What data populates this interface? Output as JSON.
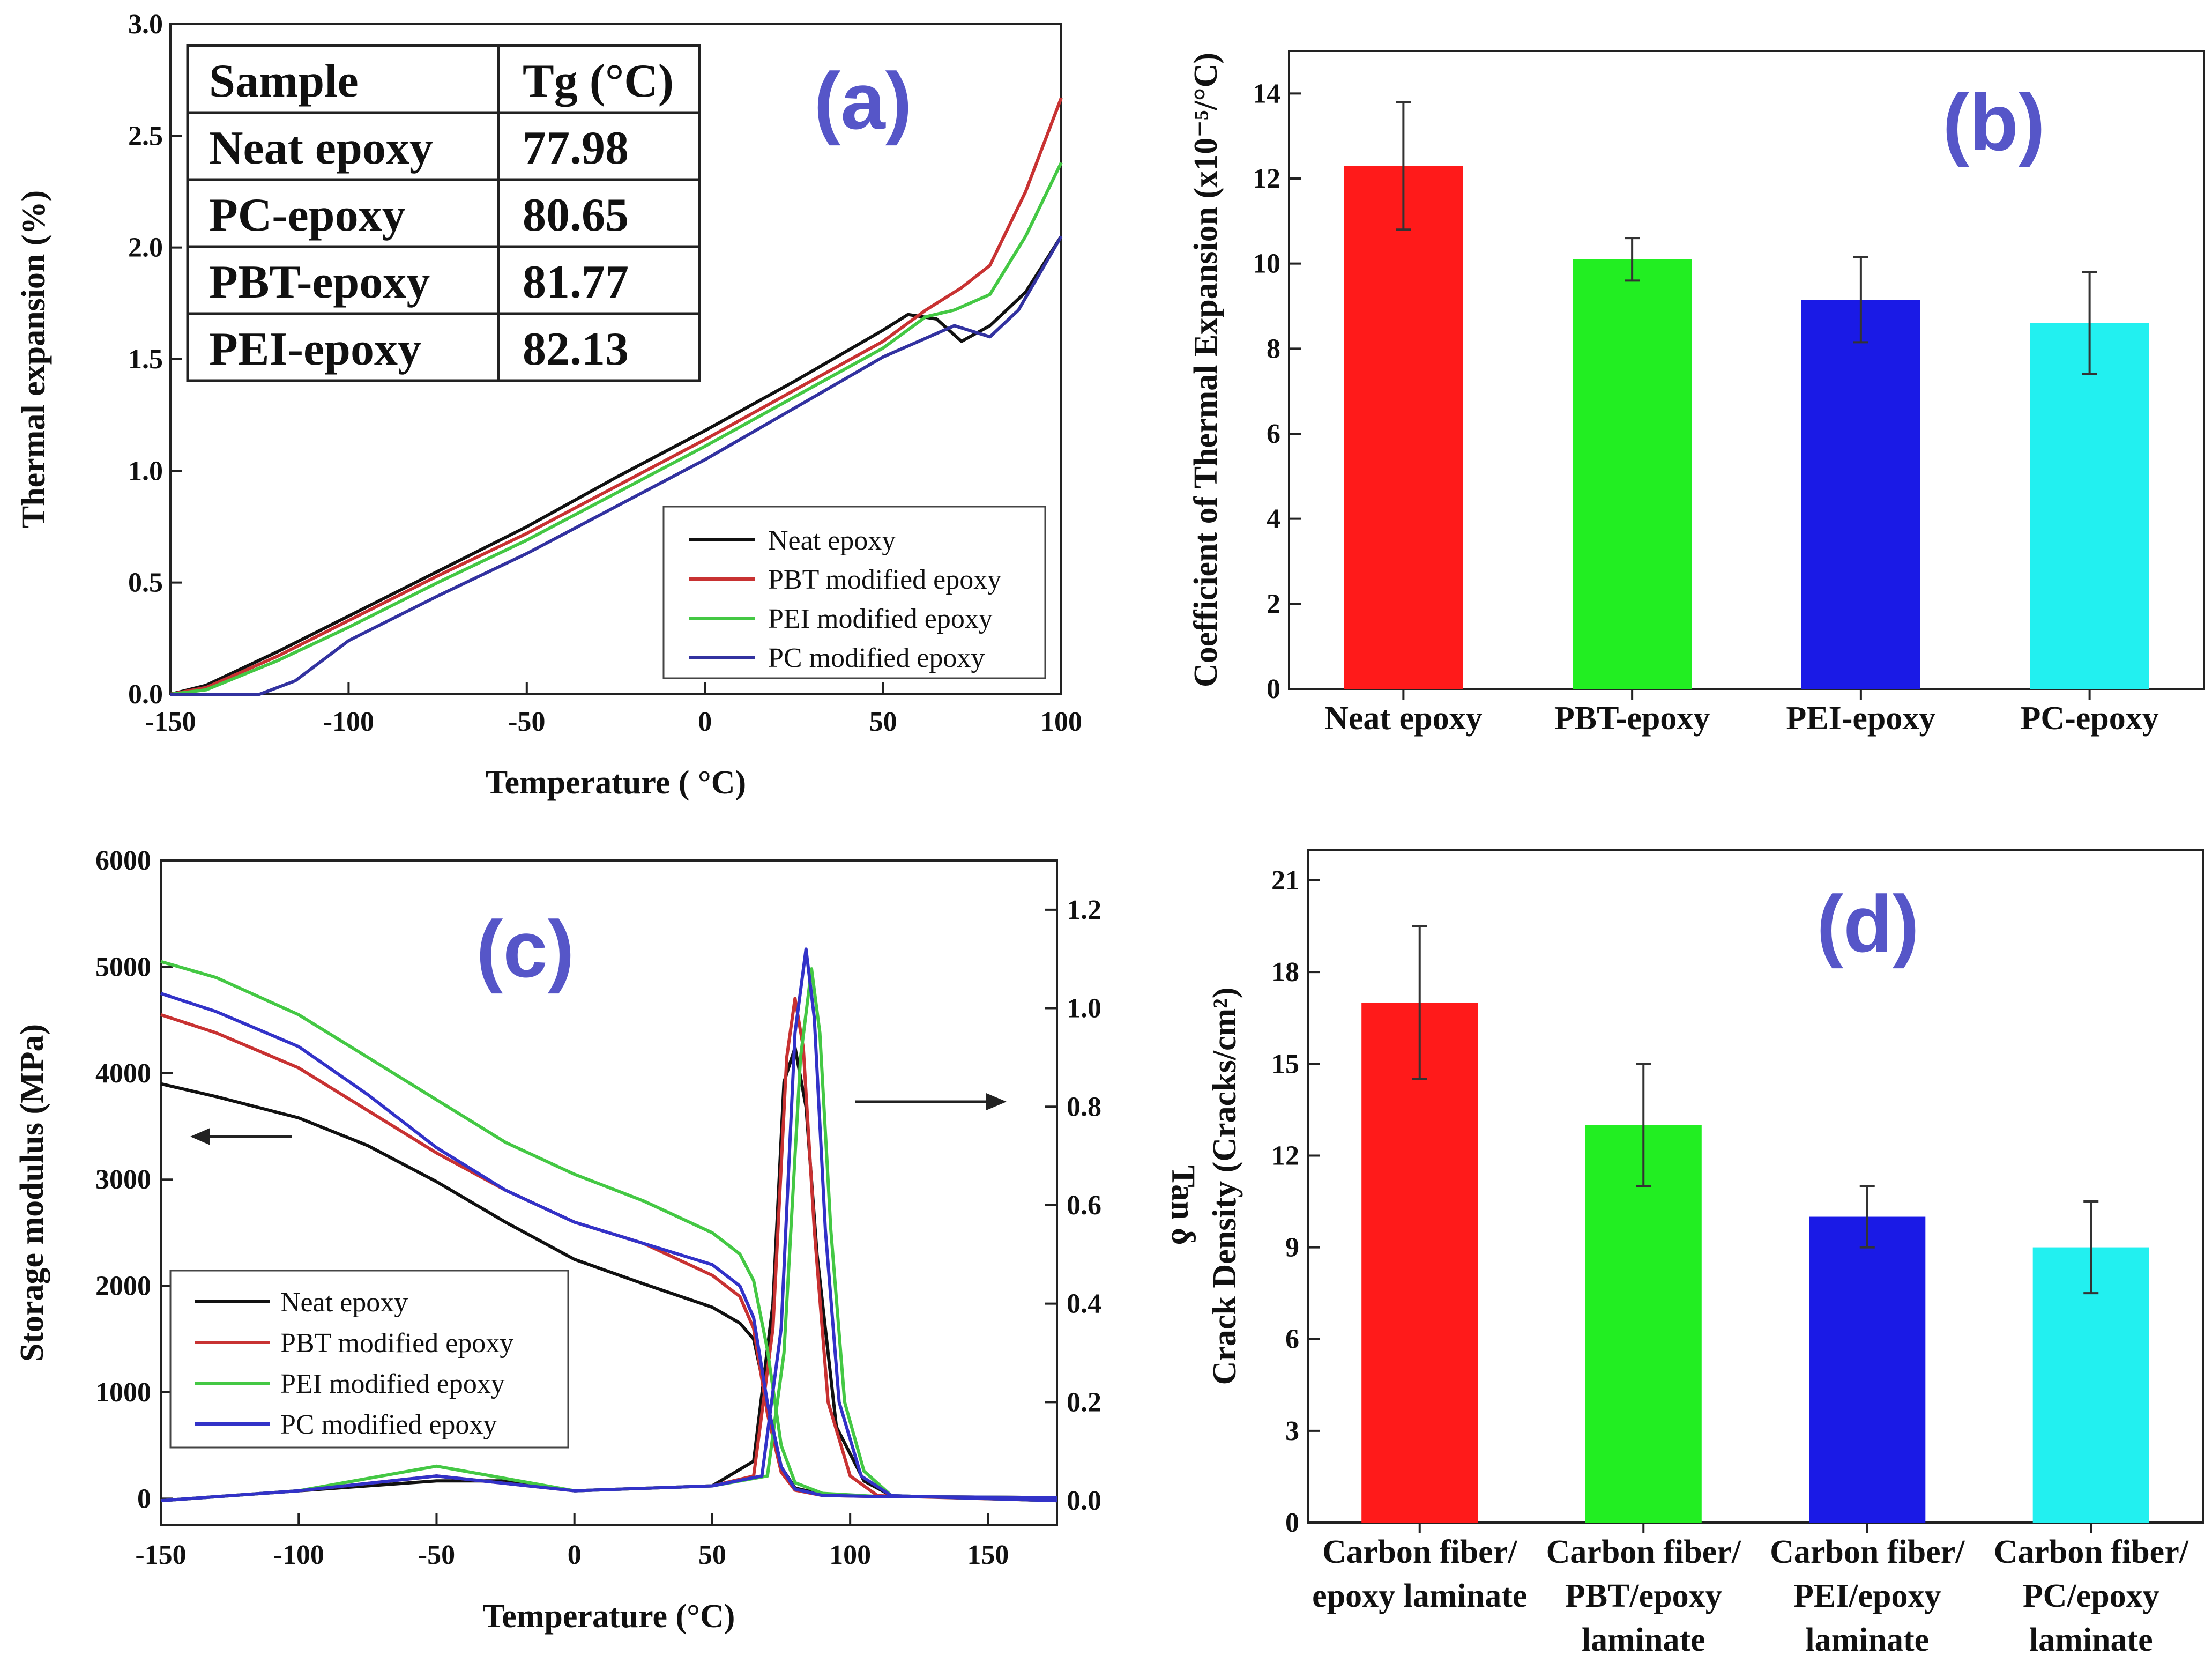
{
  "chart_data": [
    {
      "id": "a",
      "type": "line",
      "panel_label": "(a)",
      "xlabel": "Temperature ( °C)",
      "ylabel": "Thermal expansion (%)",
      "xlim": [
        -150,
        100
      ],
      "ylim": [
        0,
        3.0
      ],
      "xticks": [
        "-150",
        "-100",
        "-50",
        "0",
        "50",
        "100"
      ],
      "yticks": [
        "0.0",
        "0.5",
        "1.0",
        "1.5",
        "2.0",
        "2.5",
        "3.0"
      ],
      "legend": [
        "Neat epoxy",
        "PBT modified epoxy",
        "PEI modified epoxy",
        "PC modified epoxy"
      ],
      "table": {
        "header": [
          "Sample",
          "Tg (°C)"
        ],
        "rows": [
          [
            "Neat epoxy",
            "77.98"
          ],
          [
            "PC-epoxy",
            "80.65"
          ],
          [
            "PBT-epoxy",
            "81.77"
          ],
          [
            "PEI-epoxy",
            "82.13"
          ]
        ]
      },
      "series": [
        {
          "name": "Neat epoxy",
          "color": "#111111",
          "x": [
            -150,
            -140,
            -120,
            -100,
            -75,
            -50,
            -25,
            0,
            25,
            50,
            57,
            65,
            72,
            80,
            90,
            100
          ],
          "y": [
            0,
            0.04,
            0.19,
            0.35,
            0.55,
            0.75,
            0.97,
            1.18,
            1.4,
            1.63,
            1.7,
            1.68,
            1.58,
            1.65,
            1.8,
            2.05
          ]
        },
        {
          "name": "PBT modified epoxy",
          "color": "#c83232",
          "x": [
            -150,
            -140,
            -120,
            -100,
            -75,
            -50,
            -25,
            0,
            25,
            50,
            62,
            72,
            80,
            90,
            100
          ],
          "y": [
            0,
            0.03,
            0.17,
            0.33,
            0.53,
            0.72,
            0.93,
            1.14,
            1.36,
            1.58,
            1.72,
            1.82,
            1.92,
            2.25,
            2.67
          ]
        },
        {
          "name": "PEI modified epoxy",
          "color": "#44c844",
          "x": [
            -150,
            -140,
            -120,
            -100,
            -75,
            -50,
            -25,
            0,
            25,
            50,
            62,
            70,
            80,
            90,
            100
          ],
          "y": [
            0,
            0.02,
            0.15,
            0.3,
            0.5,
            0.69,
            0.9,
            1.11,
            1.33,
            1.55,
            1.69,
            1.72,
            1.79,
            2.05,
            2.38
          ]
        },
        {
          "name": "PC modified epoxy",
          "color": "#3232a0",
          "x": [
            -150,
            -135,
            -125,
            -115,
            -100,
            -75,
            -50,
            -25,
            0,
            25,
            50,
            70,
            80,
            88,
            100
          ],
          "y": [
            0,
            0,
            0,
            0.06,
            0.24,
            0.44,
            0.63,
            0.84,
            1.05,
            1.28,
            1.51,
            1.65,
            1.6,
            1.72,
            2.05
          ]
        }
      ]
    },
    {
      "id": "b",
      "type": "bar",
      "panel_label": "(b)",
      "ylabel": "Coefficient of Thermal Expansion (x10⁻⁵/°C)",
      "ylim": [
        0,
        15
      ],
      "yticks": [
        "0",
        "2",
        "4",
        "6",
        "8",
        "10",
        "12",
        "14"
      ],
      "categories": [
        "Neat epoxy",
        "PBT-epoxy",
        "PEI-epoxy",
        "PC-epoxy"
      ],
      "values": [
        12.3,
        10.1,
        9.15,
        8.6
      ],
      "errors": [
        1.5,
        0.5,
        1.0,
        1.2
      ],
      "colors": [
        "#ff1a1a",
        "#22ee22",
        "#1a1ae6",
        "#22f0f0"
      ]
    },
    {
      "id": "c",
      "type": "line",
      "panel_label": "(c)",
      "xlabel": "Temperature (°C)",
      "ylabel": "Storage modulus (MPa)",
      "y2label": "Tan δ",
      "xlim": [
        -150,
        175
      ],
      "ylim": [
        -250,
        6000
      ],
      "y2lim": [
        -0.05,
        1.3
      ],
      "xticks": [
        "-150",
        "-100",
        "-50",
        "0",
        "50",
        "100",
        "150"
      ],
      "yticks": [
        "0",
        "1000",
        "2000",
        "3000",
        "4000",
        "5000",
        "6000"
      ],
      "y2ticks": [
        "0.0",
        "0.2",
        "0.4",
        "0.6",
        "0.8",
        "1.0",
        "1.2"
      ],
      "legend": [
        "Neat epoxy",
        "PBT modified epoxy",
        "PEI modified epoxy",
        "PC modified epoxy"
      ],
      "series": [
        {
          "name": "Neat epoxy",
          "color": "#111111",
          "x": [
            -150,
            -130,
            -100,
            -75,
            -50,
            -25,
            0,
            25,
            50,
            60,
            65,
            70,
            75,
            80,
            90,
            110,
            175
          ],
          "y": [
            3900,
            3780,
            3580,
            3320,
            2980,
            2600,
            2250,
            2020,
            1800,
            1650,
            1500,
            900,
            300,
            100,
            40,
            20,
            10
          ],
          "tan_x": [
            -150,
            -100,
            -50,
            -25,
            0,
            50,
            65,
            72,
            76,
            80,
            84,
            88,
            95,
            105,
            115,
            175
          ],
          "tan_y": [
            0.0,
            0.02,
            0.04,
            0.04,
            0.02,
            0.03,
            0.08,
            0.4,
            0.85,
            0.92,
            0.8,
            0.5,
            0.15,
            0.04,
            0.01,
            0.0
          ]
        },
        {
          "name": "PBT modified epoxy",
          "color": "#c83232",
          "x": [
            -150,
            -130,
            -100,
            -75,
            -50,
            -25,
            0,
            25,
            50,
            60,
            65,
            70,
            75,
            80,
            90,
            110,
            175
          ],
          "y": [
            4550,
            4380,
            4050,
            3650,
            3250,
            2900,
            2600,
            2400,
            2100,
            1900,
            1600,
            800,
            250,
            80,
            30,
            20,
            10
          ],
          "tan_x": [
            -150,
            -100,
            -50,
            0,
            50,
            65,
            72,
            77,
            80,
            83,
            87,
            92,
            100,
            110,
            175
          ],
          "tan_y": [
            0.0,
            0.02,
            0.05,
            0.02,
            0.03,
            0.05,
            0.35,
            0.9,
            1.02,
            0.92,
            0.55,
            0.2,
            0.05,
            0.01,
            0.0
          ]
        },
        {
          "name": "PEI modified epoxy",
          "color": "#44c844",
          "x": [
            -150,
            -130,
            -100,
            -75,
            -50,
            -25,
            0,
            25,
            50,
            60,
            65,
            70,
            75,
            80,
            90,
            110,
            175
          ],
          "y": [
            5050,
            4900,
            4550,
            4150,
            3750,
            3350,
            3050,
            2800,
            2500,
            2300,
            2050,
            1400,
            500,
            150,
            50,
            20,
            10
          ],
          "tan_x": [
            -150,
            -100,
            -50,
            0,
            50,
            70,
            76,
            82,
            86,
            89,
            93,
            98,
            105,
            115,
            175
          ],
          "tan_y": [
            0.0,
            0.02,
            0.07,
            0.02,
            0.03,
            0.05,
            0.3,
            0.9,
            1.08,
            0.95,
            0.55,
            0.2,
            0.06,
            0.01,
            0.0
          ]
        },
        {
          "name": "PC modified epoxy",
          "color": "#3232c8",
          "x": [
            -150,
            -130,
            -100,
            -75,
            -50,
            -25,
            0,
            25,
            50,
            60,
            65,
            70,
            75,
            80,
            90,
            110,
            175
          ],
          "y": [
            4750,
            4580,
            4250,
            3800,
            3300,
            2900,
            2600,
            2400,
            2200,
            2000,
            1700,
            900,
            300,
            90,
            30,
            20,
            10
          ],
          "tan_x": [
            -150,
            -100,
            -50,
            0,
            50,
            68,
            75,
            80,
            84,
            87,
            91,
            96,
            104,
            115,
            175
          ],
          "tan_y": [
            0.0,
            0.02,
            0.05,
            0.02,
            0.03,
            0.05,
            0.35,
            0.95,
            1.12,
            0.98,
            0.55,
            0.2,
            0.05,
            0.01,
            0.0
          ]
        }
      ]
    },
    {
      "id": "d",
      "type": "bar",
      "panel_label": "(d)",
      "ylabel": "Crack Density (Cracks/cm²)",
      "ylim": [
        0,
        22
      ],
      "yticks": [
        "0",
        "3",
        "6",
        "9",
        "12",
        "15",
        "18",
        "21"
      ],
      "categories": [
        [
          "Carbon fiber/",
          "epoxy laminate"
        ],
        [
          "Carbon fiber/",
          "PBT/epoxy",
          "laminate"
        ],
        [
          "Carbon fiber/",
          "PEI/epoxy",
          "laminate"
        ],
        [
          "Carbon fiber/",
          "PC/epoxy",
          "laminate"
        ]
      ],
      "values": [
        17.0,
        13.0,
        10.0,
        9.0
      ],
      "errors": [
        2.5,
        2.0,
        1.0,
        1.5
      ],
      "colors": [
        "#ff1a1a",
        "#22ee22",
        "#1a1ae6",
        "#22f0f0"
      ]
    }
  ]
}
